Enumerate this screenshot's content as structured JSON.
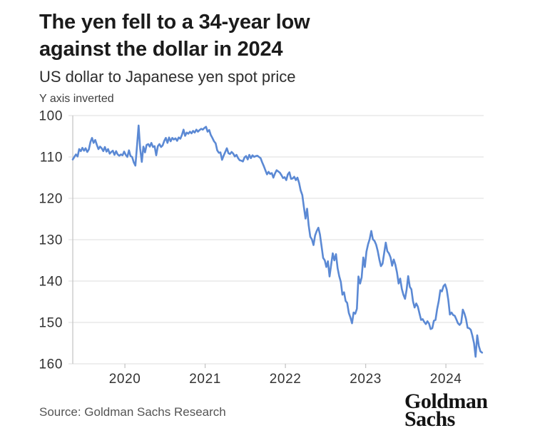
{
  "header": {
    "title_lines": [
      "The yen fell to a 34-year low",
      "against the dollar in 2024"
    ],
    "subtitle": "US dollar to Japanese yen spot price",
    "axis_note": "Y axis inverted"
  },
  "footer": {
    "source": "Source: Goldman Sachs Research",
    "logo_lines": [
      "Goldman",
      "Sachs"
    ]
  },
  "colors": {
    "line": "#5B89D4",
    "grid": "#E4E4E4",
    "axis": "#C6C6C6",
    "tick_label": "#333333"
  },
  "chart_data": {
    "type": "line",
    "title": "The yen fell to a 34-year low against the dollar in 2024",
    "subtitle": "US dollar to Japanese yen spot price",
    "note": "Y axis inverted",
    "source": "Source: Goldman Sachs Research",
    "xlabel": "",
    "ylabel": "",
    "y_inverted": true,
    "grid": true,
    "legend": false,
    "ylim": [
      100,
      160
    ],
    "yticks": [
      100,
      110,
      120,
      130,
      140,
      150,
      160
    ],
    "xlim": [
      2019.35,
      2024.47
    ],
    "xticks": [
      {
        "t": 2020,
        "label": "2020"
      },
      {
        "t": 2021,
        "label": "2021"
      },
      {
        "t": 2022,
        "label": "2022"
      },
      {
        "t": 2023,
        "label": "2023"
      },
      {
        "t": 2024,
        "label": "2024"
      }
    ],
    "series": [
      {
        "name": "USD/JPY spot price",
        "points": [
          [
            2019.35,
            110.6
          ],
          [
            2019.37,
            110.0
          ],
          [
            2019.39,
            109.4
          ],
          [
            2019.41,
            109.9
          ],
          [
            2019.43,
            108.1
          ],
          [
            2019.45,
            108.6
          ],
          [
            2019.47,
            107.8
          ],
          [
            2019.49,
            108.5
          ],
          [
            2019.51,
            107.9
          ],
          [
            2019.53,
            108.8
          ],
          [
            2019.55,
            108.2
          ],
          [
            2019.57,
            106.4
          ],
          [
            2019.59,
            105.4
          ],
          [
            2019.61,
            106.6
          ],
          [
            2019.63,
            105.9
          ],
          [
            2019.65,
            107.1
          ],
          [
            2019.67,
            108.1
          ],
          [
            2019.69,
            107.5
          ],
          [
            2019.71,
            107.9
          ],
          [
            2019.73,
            108.6
          ],
          [
            2019.75,
            107.6
          ],
          [
            2019.77,
            108.7
          ],
          [
            2019.79,
            108.1
          ],
          [
            2019.81,
            109.2
          ],
          [
            2019.83,
            108.8
          ],
          [
            2019.85,
            108.5
          ],
          [
            2019.87,
            109.5
          ],
          [
            2019.89,
            108.6
          ],
          [
            2019.91,
            109.4
          ],
          [
            2019.93,
            109.7
          ],
          [
            2019.95,
            109.4
          ],
          [
            2019.97,
            109.6
          ],
          [
            2019.99,
            108.7
          ],
          [
            2020.01,
            109.5
          ],
          [
            2020.03,
            110.0
          ],
          [
            2020.05,
            108.4
          ],
          [
            2020.07,
            109.8
          ],
          [
            2020.09,
            110.0
          ],
          [
            2020.11,
            111.3
          ],
          [
            2020.13,
            112.1
          ],
          [
            2020.15,
            107.5
          ],
          [
            2020.17,
            102.4
          ],
          [
            2020.19,
            108.0
          ],
          [
            2020.21,
            111.2
          ],
          [
            2020.23,
            107.5
          ],
          [
            2020.25,
            108.9
          ],
          [
            2020.27,
            107.1
          ],
          [
            2020.29,
            106.9
          ],
          [
            2020.31,
            107.5
          ],
          [
            2020.33,
            106.6
          ],
          [
            2020.35,
            107.6
          ],
          [
            2020.37,
            107.4
          ],
          [
            2020.39,
            109.6
          ],
          [
            2020.41,
            107.4
          ],
          [
            2020.43,
            106.9
          ],
          [
            2020.45,
            107.6
          ],
          [
            2020.47,
            107.2
          ],
          [
            2020.49,
            106.1
          ],
          [
            2020.51,
            105.4
          ],
          [
            2020.53,
            106.6
          ],
          [
            2020.55,
            105.3
          ],
          [
            2020.57,
            106.2
          ],
          [
            2020.59,
            105.4
          ],
          [
            2020.61,
            105.8
          ],
          [
            2020.63,
            105.5
          ],
          [
            2020.65,
            106.1
          ],
          [
            2020.67,
            105.3
          ],
          [
            2020.69,
            105.6
          ],
          [
            2020.71,
            104.7
          ],
          [
            2020.73,
            103.4
          ],
          [
            2020.75,
            104.9
          ],
          [
            2020.77,
            104.1
          ],
          [
            2020.79,
            104.4
          ],
          [
            2020.81,
            103.9
          ],
          [
            2020.83,
            104.3
          ],
          [
            2020.85,
            103.7
          ],
          [
            2020.87,
            104.1
          ],
          [
            2020.89,
            103.4
          ],
          [
            2020.91,
            103.9
          ],
          [
            2020.93,
            103.5
          ],
          [
            2020.95,
            103.2
          ],
          [
            2020.97,
            103.4
          ],
          [
            2020.99,
            103.0
          ],
          [
            2021.01,
            102.7
          ],
          [
            2021.03,
            103.9
          ],
          [
            2021.05,
            103.5
          ],
          [
            2021.07,
            104.7
          ],
          [
            2021.09,
            105.4
          ],
          [
            2021.11,
            106.2
          ],
          [
            2021.13,
            106.7
          ],
          [
            2021.15,
            108.4
          ],
          [
            2021.17,
            109.0
          ],
          [
            2021.19,
            108.9
          ],
          [
            2021.21,
            110.7
          ],
          [
            2021.23,
            109.7
          ],
          [
            2021.25,
            108.8
          ],
          [
            2021.27,
            107.9
          ],
          [
            2021.29,
            109.1
          ],
          [
            2021.31,
            109.3
          ],
          [
            2021.33,
            108.8
          ],
          [
            2021.35,
            109.2
          ],
          [
            2021.37,
            109.9
          ],
          [
            2021.39,
            109.5
          ],
          [
            2021.41,
            110.3
          ],
          [
            2021.43,
            110.8
          ],
          [
            2021.45,
            110.9
          ],
          [
            2021.47,
            111.1
          ],
          [
            2021.49,
            110.1
          ],
          [
            2021.51,
            109.8
          ],
          [
            2021.53,
            110.6
          ],
          [
            2021.55,
            109.5
          ],
          [
            2021.57,
            110.3
          ],
          [
            2021.59,
            109.6
          ],
          [
            2021.61,
            110.0
          ],
          [
            2021.63,
            109.8
          ],
          [
            2021.65,
            109.7
          ],
          [
            2021.67,
            110.0
          ],
          [
            2021.69,
            110.3
          ],
          [
            2021.71,
            111.3
          ],
          [
            2021.73,
            112.2
          ],
          [
            2021.75,
            113.2
          ],
          [
            2021.77,
            114.2
          ],
          [
            2021.79,
            113.6
          ],
          [
            2021.81,
            114.1
          ],
          [
            2021.83,
            113.9
          ],
          [
            2021.85,
            115.0
          ],
          [
            2021.87,
            114.0
          ],
          [
            2021.89,
            113.2
          ],
          [
            2021.91,
            113.5
          ],
          [
            2021.93,
            113.8
          ],
          [
            2021.95,
            114.4
          ],
          [
            2021.97,
            115.1
          ],
          [
            2021.99,
            114.9
          ],
          [
            2022.01,
            115.6
          ],
          [
            2022.03,
            114.2
          ],
          [
            2022.05,
            113.7
          ],
          [
            2022.07,
            115.3
          ],
          [
            2022.09,
            115.2
          ],
          [
            2022.11,
            114.8
          ],
          [
            2022.13,
            115.6
          ],
          [
            2022.15,
            115.0
          ],
          [
            2022.17,
            116.3
          ],
          [
            2022.19,
            118.1
          ],
          [
            2022.21,
            119.2
          ],
          [
            2022.23,
            122.1
          ],
          [
            2022.25,
            124.9
          ],
          [
            2022.27,
            122.5
          ],
          [
            2022.29,
            126.5
          ],
          [
            2022.31,
            129.3
          ],
          [
            2022.33,
            129.9
          ],
          [
            2022.35,
            131.3
          ],
          [
            2022.37,
            129.0
          ],
          [
            2022.39,
            127.9
          ],
          [
            2022.41,
            127.1
          ],
          [
            2022.43,
            128.7
          ],
          [
            2022.45,
            131.6
          ],
          [
            2022.47,
            134.4
          ],
          [
            2022.49,
            135.0
          ],
          [
            2022.51,
            136.6
          ],
          [
            2022.53,
            135.2
          ],
          [
            2022.55,
            138.9
          ],
          [
            2022.57,
            136.1
          ],
          [
            2022.59,
            133.3
          ],
          [
            2022.61,
            135.0
          ],
          [
            2022.63,
            133.5
          ],
          [
            2022.65,
            136.9
          ],
          [
            2022.67,
            138.8
          ],
          [
            2022.69,
            140.2
          ],
          [
            2022.71,
            143.3
          ],
          [
            2022.73,
            142.7
          ],
          [
            2022.75,
            144.8
          ],
          [
            2022.77,
            145.3
          ],
          [
            2022.79,
            147.7
          ],
          [
            2022.81,
            148.8
          ],
          [
            2022.83,
            150.2
          ],
          [
            2022.85,
            147.6
          ],
          [
            2022.87,
            147.9
          ],
          [
            2022.89,
            146.7
          ],
          [
            2022.91,
            138.9
          ],
          [
            2022.93,
            140.6
          ],
          [
            2022.95,
            139.1
          ],
          [
            2022.97,
            134.3
          ],
          [
            2022.99,
            136.6
          ],
          [
            2023.01,
            132.9
          ],
          [
            2023.03,
            131.1
          ],
          [
            2023.05,
            129.9
          ],
          [
            2023.07,
            127.9
          ],
          [
            2023.09,
            129.9
          ],
          [
            2023.11,
            130.3
          ],
          [
            2023.13,
            131.2
          ],
          [
            2023.15,
            132.7
          ],
          [
            2023.17,
            134.8
          ],
          [
            2023.19,
            136.4
          ],
          [
            2023.21,
            135.8
          ],
          [
            2023.23,
            133.3
          ],
          [
            2023.25,
            130.7
          ],
          [
            2023.27,
            132.8
          ],
          [
            2023.29,
            133.3
          ],
          [
            2023.31,
            134.3
          ],
          [
            2023.33,
            136.3
          ],
          [
            2023.35,
            134.8
          ],
          [
            2023.37,
            136.0
          ],
          [
            2023.39,
            137.9
          ],
          [
            2023.41,
            140.6
          ],
          [
            2023.43,
            139.4
          ],
          [
            2023.45,
            141.9
          ],
          [
            2023.47,
            143.3
          ],
          [
            2023.49,
            144.3
          ],
          [
            2023.51,
            142.1
          ],
          [
            2023.53,
            138.8
          ],
          [
            2023.55,
            141.4
          ],
          [
            2023.57,
            142.0
          ],
          [
            2023.59,
            144.9
          ],
          [
            2023.61,
            146.4
          ],
          [
            2023.63,
            145.4
          ],
          [
            2023.65,
            146.2
          ],
          [
            2023.67,
            147.8
          ],
          [
            2023.69,
            149.4
          ],
          [
            2023.71,
            149.2
          ],
          [
            2023.73,
            149.9
          ],
          [
            2023.75,
            150.4
          ],
          [
            2023.77,
            149.7
          ],
          [
            2023.79,
            150.3
          ],
          [
            2023.81,
            151.6
          ],
          [
            2023.83,
            151.4
          ],
          [
            2023.85,
            149.6
          ],
          [
            2023.87,
            149.4
          ],
          [
            2023.89,
            146.8
          ],
          [
            2023.91,
            144.9
          ],
          [
            2023.93,
            142.2
          ],
          [
            2023.95,
            142.5
          ],
          [
            2023.97,
            141.2
          ],
          [
            2023.99,
            140.8
          ],
          [
            2024.01,
            142.0
          ],
          [
            2024.03,
            144.6
          ],
          [
            2024.05,
            148.1
          ],
          [
            2024.07,
            147.6
          ],
          [
            2024.09,
            148.2
          ],
          [
            2024.11,
            148.4
          ],
          [
            2024.13,
            149.3
          ],
          [
            2024.15,
            150.2
          ],
          [
            2024.17,
            150.6
          ],
          [
            2024.19,
            150.1
          ],
          [
            2024.21,
            146.9
          ],
          [
            2024.23,
            147.8
          ],
          [
            2024.25,
            149.1
          ],
          [
            2024.27,
            151.3
          ],
          [
            2024.29,
            151.4
          ],
          [
            2024.31,
            151.8
          ],
          [
            2024.33,
            153.2
          ],
          [
            2024.35,
            155.0
          ],
          [
            2024.37,
            158.3
          ],
          [
            2024.39,
            153.1
          ],
          [
            2024.41,
            155.7
          ],
          [
            2024.43,
            157.0
          ],
          [
            2024.45,
            157.3
          ]
        ]
      }
    ]
  }
}
